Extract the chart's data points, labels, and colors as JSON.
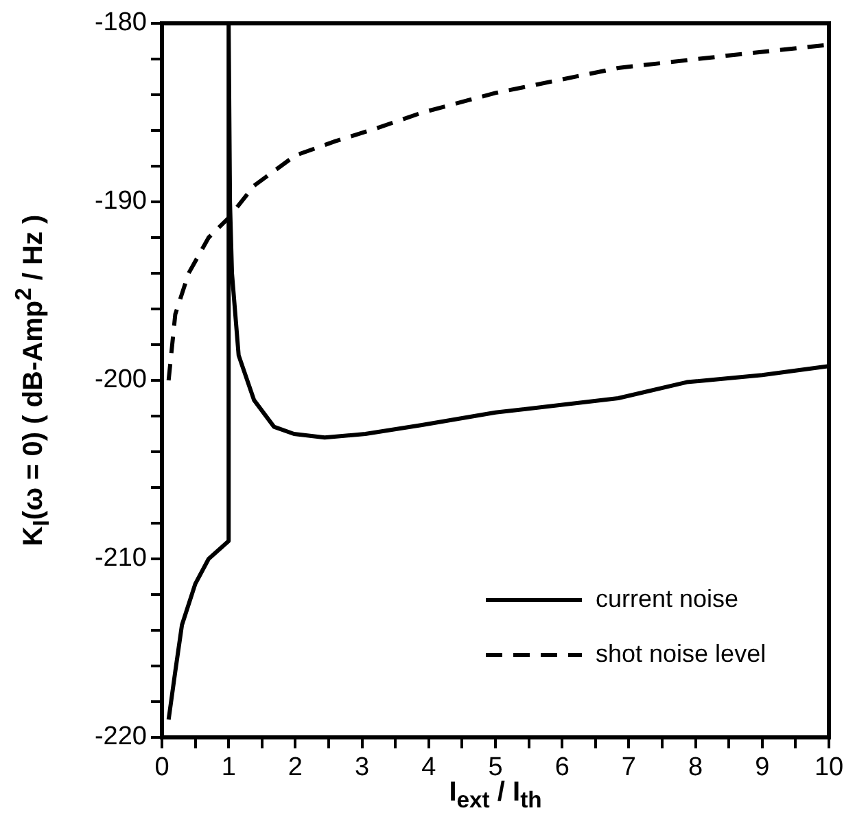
{
  "chart_data": {
    "type": "line",
    "xlabel": "I$_{ext}$ / I$_{th}$",
    "ylabel": "K$_{I}$(ω = 0)   ( dB-Amp$^{2}$ / Hz )",
    "xlim": [
      0,
      10
    ],
    "xticks": [
      0,
      {
        "value": 0.5,
        "label": null
      },
      1,
      {
        "value": 1.5,
        "label": null
      },
      2,
      {
        "value": 2.5,
        "label": null
      },
      3,
      {
        "value": 3.5,
        "label": null
      },
      4,
      {
        "value": 4.5,
        "label": null
      },
      5,
      {
        "value": 5.5,
        "label": null
      },
      6,
      {
        "value": 6.5,
        "label": null
      },
      7,
      {
        "value": 7.5,
        "label": null
      },
      8,
      {
        "value": 8.5,
        "label": null
      },
      9,
      {
        "value": 9.5,
        "label": null
      },
      10
    ],
    "ylim": [
      -220,
      -180
    ],
    "yticks": [
      -220,
      {
        "value": -218,
        "label": null
      },
      {
        "value": -216,
        "label": null
      },
      {
        "value": -214,
        "label": null
      },
      {
        "value": -212,
        "label": null
      },
      -210,
      {
        "value": -208,
        "label": null
      },
      {
        "value": -206,
        "label": null
      },
      {
        "value": -204,
        "label": null
      },
      {
        "value": -202,
        "label": null
      },
      -200,
      {
        "value": -198,
        "label": null
      },
      {
        "value": -196,
        "label": null
      },
      {
        "value": -194,
        "label": null
      },
      {
        "value": -192,
        "label": null
      },
      -190,
      {
        "value": -188,
        "label": null
      },
      {
        "value": -186,
        "label": null
      },
      {
        "value": -184,
        "label": null
      },
      {
        "value": -182,
        "label": null
      },
      -180
    ],
    "grid": false,
    "legend": "bottom right",
    "marker": "none",
    "series": [
      {
        "name": "current noise",
        "color": "#000000",
        "line_style": "solid",
        "x": [
          0.1,
          0.2,
          0.3,
          0.5,
          0.7,
          1.0,
          1.0,
          1.02,
          1.05,
          1.15,
          1.38,
          1.68,
          1.98,
          2.44,
          3.05,
          3.9,
          5.0,
          6.84,
          7.87,
          9.0,
          10.0
        ],
        "values": [
          -219,
          -216.3,
          -213.7,
          -211.4,
          -210,
          -209,
          -180,
          -190,
          -194,
          -198.6,
          -201.1,
          -202.6,
          -203,
          -203.2,
          -203,
          -202.5,
          -201.8,
          -201,
          -200.1,
          -199.7,
          -199.2
        ]
      },
      {
        "name": "shot noise level",
        "color": "#000000",
        "line_style": "dashed",
        "x": [
          0.1,
          0.2,
          0.4,
          0.7,
          1.0,
          1.38,
          2.0,
          2.6,
          3.2,
          3.9,
          5.0,
          6.84,
          8.5,
          10.0
        ],
        "values": [
          -200,
          -196.3,
          -194,
          -192,
          -190.9,
          -189.1,
          -187.4,
          -186.6,
          -185.9,
          -185,
          -183.9,
          -182.5,
          -181.8,
          -181.2
        ]
      }
    ]
  }
}
